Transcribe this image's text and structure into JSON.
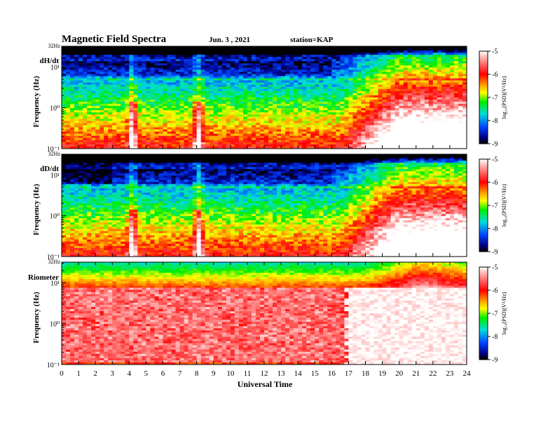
{
  "header": {
    "title": "Magnetic  Field  Spectra",
    "date": "Jun.  3  , 2021",
    "station": "station=KAP"
  },
  "chart_data": [
    {
      "type": "heatmap",
      "panel_label": "dH/dt",
      "ylabel": "Frequency  (Hz)",
      "y_scale": "log",
      "yticks": [
        "10⁻¹",
        "10⁰",
        "10¹"
      ],
      "ytop_label": "32Hz",
      "colorbar": {
        "label": "log₁₀(PSD)(V²/Hz)",
        "ticks": [
          "-5",
          "-6",
          "-7",
          "-8",
          "-9"
        ],
        "range": [
          -9,
          -5
        ]
      }
    },
    {
      "type": "heatmap",
      "panel_label": "dD/dt",
      "ylabel": "Frequency  (Hz)",
      "y_scale": "log",
      "yticks": [
        "10⁻¹",
        "10⁰",
        "10¹"
      ],
      "ytop_label": "32Hz",
      "colorbar": {
        "label": "log₁₀(PSD)(V²/Hz)",
        "ticks": [
          "-5",
          "-6",
          "-7",
          "-8",
          "-9"
        ],
        "range": [
          -9,
          -5
        ]
      }
    },
    {
      "type": "heatmap",
      "panel_label": "Riometer",
      "ylabel": "Frequency  (Hz)",
      "y_scale": "log",
      "yticks": [
        "10⁻¹",
        "10⁰",
        "10¹"
      ],
      "ytop_label": "32Hz",
      "colorbar": {
        "label": "log₁₀(PSD)(V²/Hz)",
        "ticks": [
          "-5",
          "-6",
          "-7",
          "-8",
          "-9"
        ],
        "range": [
          -9,
          -5
        ]
      }
    }
  ],
  "x_axis": {
    "label": "Universal Time",
    "ticks": [
      "0",
      "1",
      "2",
      "3",
      "4",
      "5",
      "6",
      "7",
      "8",
      "9",
      "10",
      "11",
      "12",
      "13",
      "14",
      "15",
      "16",
      "17",
      "18",
      "19",
      "20",
      "21",
      "22",
      "23",
      "24"
    ],
    "range": [
      0,
      24
    ]
  }
}
